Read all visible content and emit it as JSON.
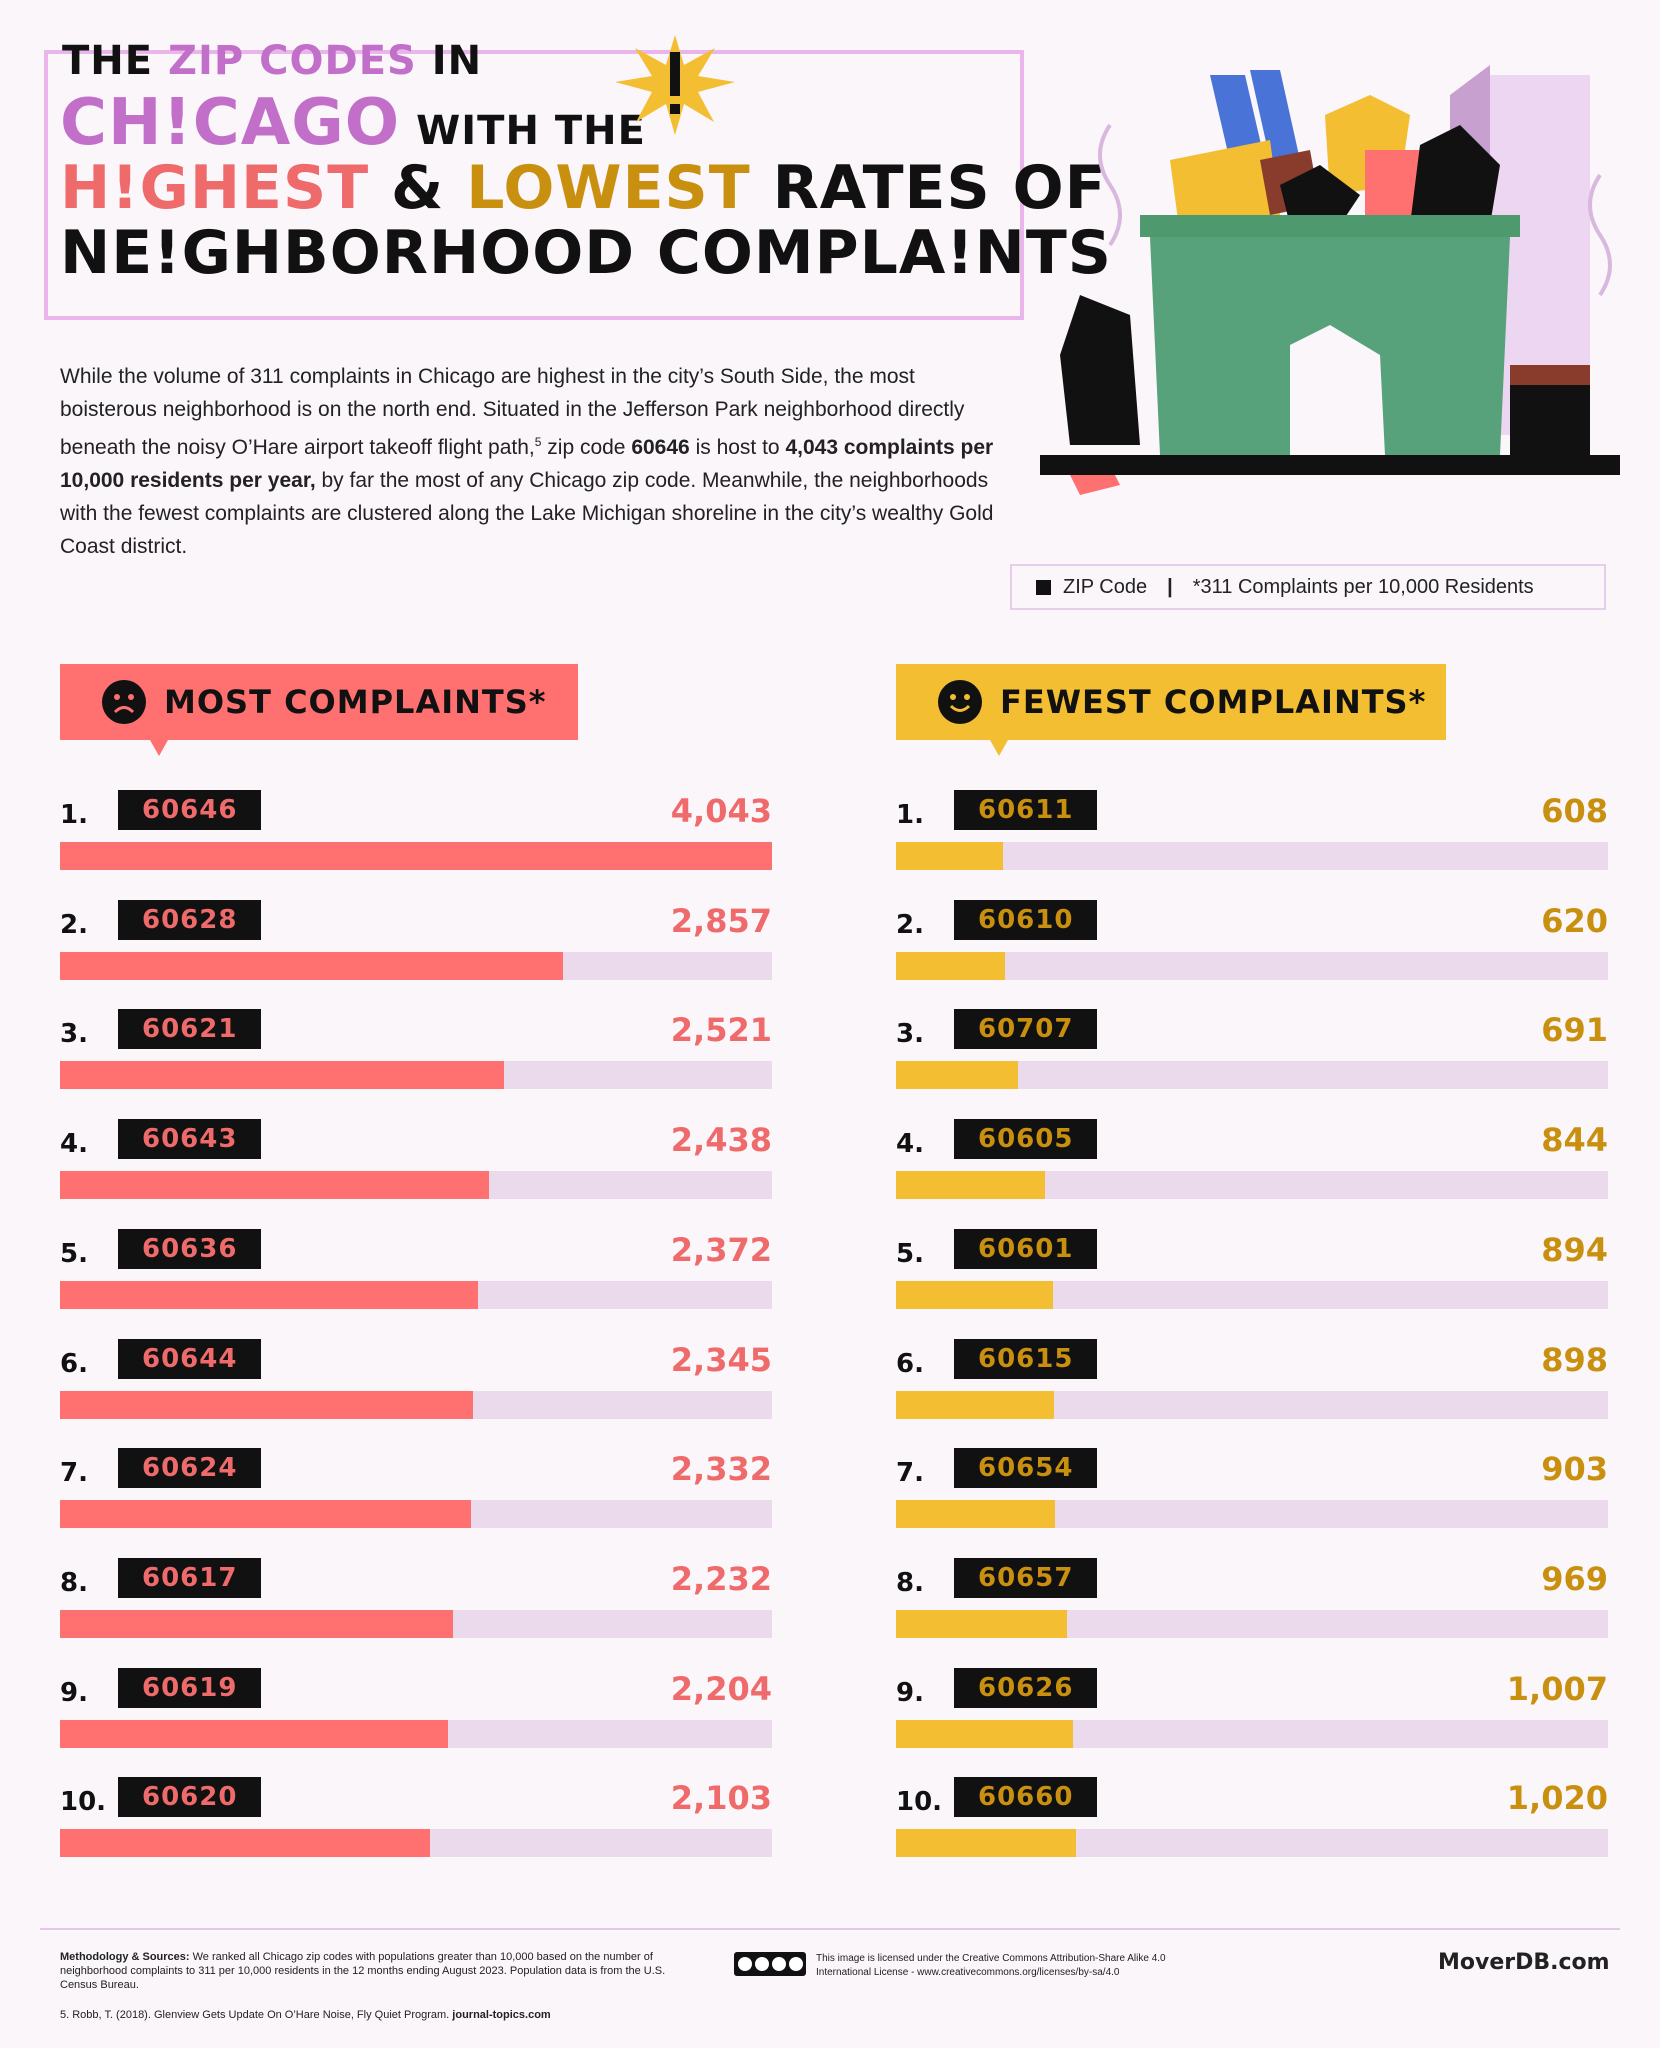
{
  "title": {
    "line1_a": "THE ",
    "line1_b": "ZIP CODES",
    "line1_c": " IN",
    "line2_a": "CH!CAGO",
    "line2_b": "WITH THE",
    "line3_a": "H!GHEST",
    "line3_b": " & ",
    "line3_c": "LOWEST",
    "line3_d": " RATES OF",
    "line4": "NE!GHBORHOOD COMPLA!NTS"
  },
  "intro": {
    "p1": "While the volume of 311 complaints in Chicago are highest in the city’s South Side, the most boisterous neighborhood is on the north end. Situated in the Jefferson Park neighborhood directly beneath the noisy O’Hare airport takeoff flight path,",
    "footnote_mark": "5",
    "p2": " zip code ",
    "zip_bold": "60646",
    "p3": " is host to ",
    "stat_bold": "4,043 complaints per 10,000 residents per year,",
    "p4": " by far the most of any Chicago zip code. Meanwhile, the neighborhoods with the fewest complaints are clustered along the Lake Michigan shoreline in the city’s wealthy Gold Coast district."
  },
  "legend": {
    "zip_label": "ZIP Code",
    "separator": "|",
    "metric_label": "*311 Complaints per 10,000 Residents"
  },
  "colors": {
    "most": "#FF7070",
    "most_text": "#EF6A6A",
    "fewest": "#F3BE32",
    "fewest_text": "#C9900F",
    "track": "#EBD9EC"
  },
  "icons": {
    "most_header": "sad-face-icon",
    "fewest_header": "smile-face-icon",
    "illustration": "overflowing-dumpster-icon",
    "exclamation": "exclamation-burst-icon"
  },
  "chart_data": [
    {
      "type": "bar",
      "title": "MOST COMPLAINTS*",
      "xlim": [
        0,
        4043
      ],
      "categories": [
        "60646",
        "60628",
        "60621",
        "60643",
        "60636",
        "60644",
        "60624",
        "60617",
        "60619",
        "60620"
      ],
      "ranks": [
        "1.",
        "2.",
        "3.",
        "4.",
        "5.",
        "6.",
        "7.",
        "8.",
        "9.",
        "10."
      ],
      "values": [
        4043,
        2857,
        2521,
        2438,
        2372,
        2345,
        2332,
        2232,
        2204,
        2103
      ],
      "value_labels": [
        "4,043",
        "2,857",
        "2,521",
        "2,438",
        "2,372",
        "2,345",
        "2,332",
        "2,232",
        "2,204",
        "2,103"
      ]
    },
    {
      "type": "bar",
      "title": "FEWEST COMPLAINTS*",
      "xlim": [
        0,
        4043
      ],
      "categories": [
        "60611",
        "60610",
        "60707",
        "60605",
        "60601",
        "60615",
        "60654",
        "60657",
        "60626",
        "60660"
      ],
      "ranks": [
        "1.",
        "2.",
        "3.",
        "4.",
        "5.",
        "6.",
        "7.",
        "8.",
        "9.",
        "10."
      ],
      "values": [
        608,
        620,
        691,
        844,
        894,
        898,
        903,
        969,
        1007,
        1020
      ],
      "value_labels": [
        "608",
        "620",
        "691",
        "844",
        "894",
        "898",
        "903",
        "969",
        "1,007",
        "1,020"
      ]
    }
  ],
  "footer": {
    "methodology_label": "Methodology & Sources:",
    "methodology_text": " We ranked all Chicago zip codes with populations greater than 10,000 based on the number of neighborhood complaints to 311 per 10,000 residents in the 12 months ending August 2023. Population data is from the U.S. Census Bureau.",
    "reference_text": "5. Robb, T. (2018). Glenview Gets Update On O’Hare Noise, Fly Quiet Program. ",
    "reference_source": "journal-topics.com",
    "license_text": "This image is licensed under the Creative Commons Attribution-Share Alike 4.0 International License - www.creativecommons.org/licenses/by-sa/4.0",
    "brand": "MoverDB.com"
  }
}
